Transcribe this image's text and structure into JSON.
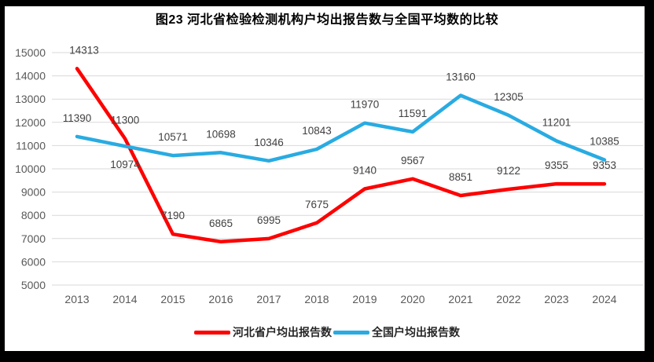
{
  "chart_data": {
    "type": "line",
    "title": "图23  河北省检验检测机构户均出报告数与全国平均数的比较",
    "categories": [
      "2013",
      "2014",
      "2015",
      "2016",
      "2017",
      "2018",
      "2019",
      "2020",
      "2021",
      "2022",
      "2023",
      "2024"
    ],
    "series": [
      {
        "name": "河北省户均出报告数",
        "color": "#FE0000",
        "values": [
          14313,
          11300,
          7190,
          6865,
          6995,
          7675,
          9140,
          9567,
          8851,
          9122,
          9355,
          9353
        ]
      },
      {
        "name": "全国户均出报告数",
        "color": "#29ABE2",
        "values": [
          11390,
          10974,
          10571,
          10698,
          10346,
          10843,
          11970,
          11591,
          13160,
          12305,
          11201,
          10385
        ]
      }
    ],
    "ylim": [
      5000,
      15000
    ],
    "yticks": [
      5000,
      6000,
      7000,
      8000,
      9000,
      10000,
      11000,
      12000,
      13000,
      14000,
      15000
    ],
    "grid": true,
    "grid_color": "#D9D9D9",
    "tick_label_color": "#595959",
    "data_label_color": "#404040",
    "data_labels": true,
    "legend_position": "bottom"
  }
}
